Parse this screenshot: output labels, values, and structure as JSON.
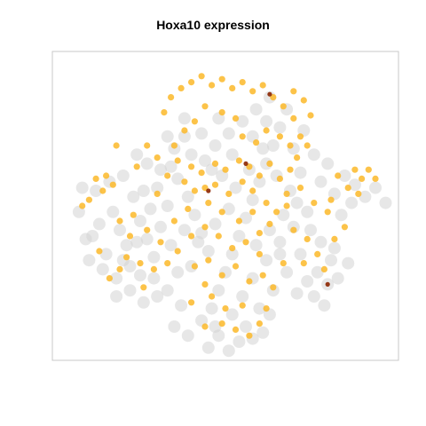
{
  "chart_data": {
    "type": "scatter",
    "title": "Hoxa10 expression",
    "xlabel": "",
    "ylabel": "",
    "grid": false,
    "legend": "none",
    "axes_shown": false,
    "colors": {
      "background_cells": "#d3d3d3",
      "expressing_cells": "#fbb829",
      "high_expression": "#8b2500",
      "frame": "#c8c8c8"
    },
    "series": [
      {
        "role": "non-expressing",
        "points": [
          [
            0.11,
            0.6
          ],
          [
            0.13,
            0.56
          ],
          [
            0.15,
            0.66
          ],
          [
            0.17,
            0.52
          ],
          [
            0.19,
            0.58
          ],
          [
            0.21,
            0.63
          ],
          [
            0.12,
            0.45
          ],
          [
            0.16,
            0.42
          ],
          [
            0.2,
            0.4
          ],
          [
            0.23,
            0.47
          ],
          [
            0.25,
            0.55
          ],
          [
            0.27,
            0.61
          ],
          [
            0.29,
            0.67
          ],
          [
            0.25,
            0.73
          ],
          [
            0.22,
            0.7
          ],
          [
            0.18,
            0.74
          ],
          [
            0.14,
            0.71
          ],
          [
            0.3,
            0.44
          ],
          [
            0.33,
            0.5
          ],
          [
            0.31,
            0.38
          ],
          [
            0.27,
            0.36
          ],
          [
            0.24,
            0.33
          ],
          [
            0.35,
            0.31
          ],
          [
            0.38,
            0.27
          ],
          [
            0.36,
            0.41
          ],
          [
            0.39,
            0.47
          ],
          [
            0.41,
            0.53
          ],
          [
            0.43,
            0.59
          ],
          [
            0.45,
            0.65
          ],
          [
            0.4,
            0.7
          ],
          [
            0.36,
            0.72
          ],
          [
            0.33,
            0.78
          ],
          [
            0.3,
            0.8
          ],
          [
            0.37,
            0.83
          ],
          [
            0.35,
            0.9
          ],
          [
            0.39,
            0.93
          ],
          [
            0.43,
            0.88
          ],
          [
            0.46,
            0.84
          ],
          [
            0.48,
            0.78
          ],
          [
            0.5,
            0.72
          ],
          [
            0.52,
            0.66
          ],
          [
            0.54,
            0.6
          ],
          [
            0.56,
            0.54
          ],
          [
            0.58,
            0.48
          ],
          [
            0.6,
            0.42
          ],
          [
            0.62,
            0.36
          ],
          [
            0.64,
            0.3
          ],
          [
            0.66,
            0.24
          ],
          [
            0.68,
            0.18
          ],
          [
            0.63,
            0.14
          ],
          [
            0.59,
            0.18
          ],
          [
            0.55,
            0.22
          ],
          [
            0.51,
            0.26
          ],
          [
            0.47,
            0.3
          ],
          [
            0.44,
            0.35
          ],
          [
            0.49,
            0.4
          ],
          [
            0.53,
            0.44
          ],
          [
            0.57,
            0.38
          ],
          [
            0.61,
            0.31
          ],
          [
            0.65,
            0.4
          ],
          [
            0.69,
            0.45
          ],
          [
            0.72,
            0.39
          ],
          [
            0.7,
            0.31
          ],
          [
            0.73,
            0.25
          ],
          [
            0.76,
            0.33
          ],
          [
            0.74,
            0.52
          ],
          [
            0.7,
            0.57
          ],
          [
            0.66,
            0.62
          ],
          [
            0.62,
            0.68
          ],
          [
            0.58,
            0.74
          ],
          [
            0.55,
            0.8
          ],
          [
            0.52,
            0.86
          ],
          [
            0.48,
            0.93
          ],
          [
            0.45,
            0.97
          ],
          [
            0.56,
            0.9
          ],
          [
            0.6,
            0.84
          ],
          [
            0.64,
            0.78
          ],
          [
            0.68,
            0.72
          ],
          [
            0.72,
            0.66
          ],
          [
            0.67,
            0.53
          ],
          [
            0.63,
            0.58
          ],
          [
            0.59,
            0.63
          ],
          [
            0.51,
            0.51
          ],
          [
            0.47,
            0.56
          ],
          [
            0.42,
            0.62
          ],
          [
            0.38,
            0.58
          ],
          [
            0.34,
            0.63
          ],
          [
            0.31,
            0.57
          ],
          [
            0.28,
            0.51
          ],
          [
            0.26,
            0.45
          ],
          [
            0.34,
            0.37
          ],
          [
            0.4,
            0.33
          ],
          [
            0.46,
            0.38
          ],
          [
            0.52,
            0.33
          ],
          [
            0.58,
            0.27
          ],
          [
            0.62,
            0.22
          ],
          [
            0.48,
            0.21
          ],
          [
            0.43,
            0.26
          ],
          [
            0.38,
            0.21
          ],
          [
            0.33,
            0.27
          ],
          [
            0.78,
            0.42
          ],
          [
            0.8,
            0.36
          ],
          [
            0.82,
            0.46
          ],
          [
            0.85,
            0.4
          ],
          [
            0.88,
            0.43
          ],
          [
            0.91,
            0.47
          ],
          [
            0.94,
            0.44
          ],
          [
            0.97,
            0.49
          ],
          [
            0.87,
            0.49
          ],
          [
            0.84,
            0.53
          ],
          [
            0.75,
            0.58
          ],
          [
            0.78,
            0.62
          ],
          [
            0.81,
            0.68
          ],
          [
            0.77,
            0.72
          ],
          [
            0.8,
            0.76
          ],
          [
            0.74,
            0.75
          ],
          [
            0.71,
            0.79
          ],
          [
            0.76,
            0.8
          ],
          [
            0.79,
            0.83
          ],
          [
            0.83,
            0.74
          ],
          [
            0.86,
            0.69
          ],
          [
            0.82,
            0.64
          ],
          [
            0.07,
            0.52
          ],
          [
            0.09,
            0.61
          ],
          [
            0.1,
            0.68
          ],
          [
            0.08,
            0.44
          ],
          [
            0.18,
            0.8
          ],
          [
            0.22,
            0.78
          ],
          [
            0.26,
            0.82
          ],
          [
            0.29,
            0.74
          ],
          [
            0.47,
            0.9
          ],
          [
            0.51,
            0.98
          ],
          [
            0.54,
            0.95
          ],
          [
            0.58,
            0.94
          ],
          [
            0.61,
            0.92
          ],
          [
            0.63,
            0.86
          ],
          [
            0.66,
            0.66
          ],
          [
            0.71,
            0.49
          ],
          [
            0.24,
            0.62
          ],
          [
            0.2,
            0.68
          ]
        ]
      },
      {
        "role": "expressing",
        "points": [
          [
            0.12,
            0.41
          ],
          [
            0.15,
            0.4
          ],
          [
            0.17,
            0.43
          ],
          [
            0.14,
            0.45
          ],
          [
            0.1,
            0.48
          ],
          [
            0.08,
            0.5
          ],
          [
            0.19,
            0.55
          ],
          [
            0.23,
            0.53
          ],
          [
            0.22,
            0.6
          ],
          [
            0.21,
            0.67
          ],
          [
            0.25,
            0.69
          ],
          [
            0.29,
            0.71
          ],
          [
            0.26,
            0.77
          ],
          [
            0.19,
            0.71
          ],
          [
            0.16,
            0.74
          ],
          [
            0.13,
            0.65
          ],
          [
            0.18,
            0.3
          ],
          [
            0.24,
            0.37
          ],
          [
            0.27,
            0.3
          ],
          [
            0.3,
            0.34
          ],
          [
            0.32,
            0.19
          ],
          [
            0.34,
            0.14
          ],
          [
            0.37,
            0.11
          ],
          [
            0.4,
            0.09
          ],
          [
            0.43,
            0.07
          ],
          [
            0.46,
            0.1
          ],
          [
            0.49,
            0.08
          ],
          [
            0.52,
            0.11
          ],
          [
            0.55,
            0.09
          ],
          [
            0.58,
            0.12
          ],
          [
            0.61,
            0.1
          ],
          [
            0.64,
            0.14
          ],
          [
            0.67,
            0.17
          ],
          [
            0.7,
            0.21
          ],
          [
            0.72,
            0.27
          ],
          [
            0.69,
            0.3
          ],
          [
            0.66,
            0.27
          ],
          [
            0.62,
            0.25
          ],
          [
            0.59,
            0.29
          ],
          [
            0.55,
            0.27
          ],
          [
            0.53,
            0.21
          ],
          [
            0.49,
            0.19
          ],
          [
            0.44,
            0.17
          ],
          [
            0.41,
            0.22
          ],
          [
            0.38,
            0.25
          ],
          [
            0.35,
            0.3
          ],
          [
            0.36,
            0.35
          ],
          [
            0.4,
            0.37
          ],
          [
            0.43,
            0.39
          ],
          [
            0.47,
            0.36
          ],
          [
            0.5,
            0.38
          ],
          [
            0.54,
            0.35
          ],
          [
            0.57,
            0.37
          ],
          [
            0.6,
            0.4
          ],
          [
            0.63,
            0.36
          ],
          [
            0.66,
            0.41
          ],
          [
            0.69,
            0.38
          ],
          [
            0.38,
            0.42
          ],
          [
            0.41,
            0.45
          ],
          [
            0.44,
            0.44
          ],
          [
            0.47,
            0.43
          ],
          [
            0.51,
            0.46
          ],
          [
            0.55,
            0.42
          ],
          [
            0.58,
            0.45
          ],
          [
            0.62,
            0.49
          ],
          [
            0.65,
            0.52
          ],
          [
            0.68,
            0.5
          ],
          [
            0.63,
            0.56
          ],
          [
            0.6,
            0.59
          ],
          [
            0.56,
            0.62
          ],
          [
            0.52,
            0.64
          ],
          [
            0.48,
            0.6
          ],
          [
            0.44,
            0.57
          ],
          [
            0.4,
            0.6
          ],
          [
            0.36,
            0.65
          ],
          [
            0.33,
            0.69
          ],
          [
            0.41,
            0.7
          ],
          [
            0.45,
            0.68
          ],
          [
            0.49,
            0.73
          ],
          [
            0.53,
            0.7
          ],
          [
            0.57,
            0.75
          ],
          [
            0.61,
            0.73
          ],
          [
            0.64,
            0.77
          ],
          [
            0.67,
            0.69
          ],
          [
            0.44,
            0.76
          ],
          [
            0.4,
            0.82
          ],
          [
            0.46,
            0.8
          ],
          [
            0.5,
            0.84
          ],
          [
            0.55,
            0.83
          ],
          [
            0.44,
            0.9
          ],
          [
            0.49,
            0.89
          ],
          [
            0.53,
            0.91
          ],
          [
            0.57,
            0.93
          ],
          [
            0.6,
            0.89
          ],
          [
            0.62,
            0.84
          ],
          [
            0.7,
            0.58
          ],
          [
            0.74,
            0.61
          ],
          [
            0.77,
            0.66
          ],
          [
            0.79,
            0.71
          ],
          [
            0.73,
            0.69
          ],
          [
            0.82,
            0.61
          ],
          [
            0.85,
            0.57
          ],
          [
            0.8,
            0.52
          ],
          [
            0.76,
            0.49
          ],
          [
            0.83,
            0.4
          ],
          [
            0.86,
            0.44
          ],
          [
            0.88,
            0.38
          ],
          [
            0.9,
            0.41
          ],
          [
            0.92,
            0.38
          ],
          [
            0.94,
            0.41
          ],
          [
            0.89,
            0.46
          ],
          [
            0.81,
            0.48
          ],
          [
            0.72,
            0.44
          ],
          [
            0.68,
            0.46
          ],
          [
            0.71,
            0.34
          ],
          [
            0.74,
            0.3
          ],
          [
            0.75,
            0.2
          ],
          [
            0.73,
            0.15
          ],
          [
            0.7,
            0.12
          ],
          [
            0.33,
            0.4
          ],
          [
            0.3,
            0.46
          ],
          [
            0.27,
            0.58
          ],
          [
            0.31,
            0.62
          ],
          [
            0.35,
            0.55
          ],
          [
            0.39,
            0.51
          ],
          [
            0.45,
            0.49
          ],
          [
            0.49,
            0.52
          ],
          [
            0.54,
            0.55
          ],
          [
            0.58,
            0.52
          ],
          [
            0.6,
            0.66
          ]
        ]
      },
      {
        "role": "high",
        "points": [
          [
            0.56,
            0.36
          ],
          [
            0.45,
            0.45
          ],
          [
            0.63,
            0.13
          ],
          [
            0.8,
            0.76
          ]
        ]
      }
    ]
  }
}
